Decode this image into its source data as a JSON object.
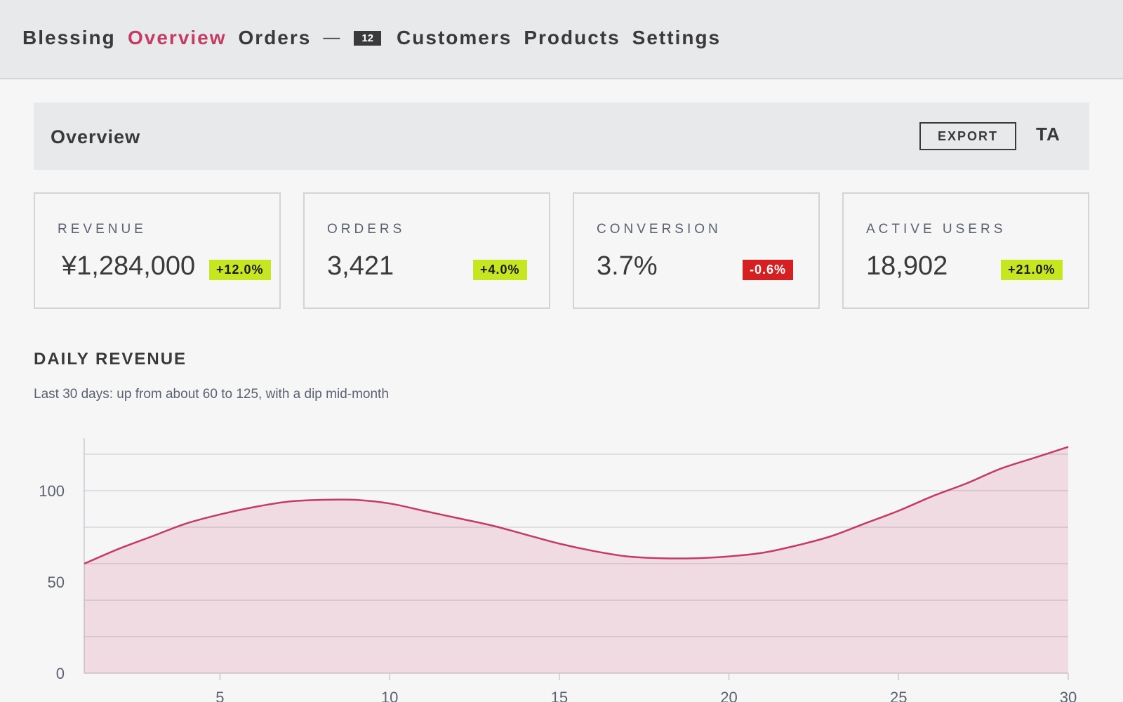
{
  "nav": {
    "brand": "Blessing",
    "items": [
      {
        "label": "Overview",
        "active": true
      },
      {
        "label": "Orders",
        "active": false
      },
      {
        "label": "Customers",
        "active": false
      },
      {
        "label": "Products",
        "active": false
      },
      {
        "label": "Settings",
        "active": false
      }
    ],
    "separator": "—",
    "orders_badge": "12"
  },
  "header": {
    "title": "Overview",
    "export_label": "EXPORT",
    "avatar_initials": "TA"
  },
  "kpis": [
    {
      "label": "REVENUE",
      "value": "¥1,284,000",
      "delta": "+12.0%",
      "trend": "up"
    },
    {
      "label": "ORDERS",
      "value": "3,421",
      "delta": "+4.0%",
      "trend": "up"
    },
    {
      "label": "CONVERSION",
      "value": "3.7%",
      "delta": "-0.6%",
      "trend": "down"
    },
    {
      "label": "ACTIVE USERS",
      "value": "18,902",
      "delta": "+21.0%",
      "trend": "up"
    }
  ],
  "colors": {
    "accent": "#c43c64",
    "positive": "#c5e621",
    "negative": "#d42020",
    "text": "#3a3a3c"
  },
  "section": {
    "title": "DAILY REVENUE",
    "subtitle": "Last 30 days: up from about 60 to 125, with a dip mid-month"
  },
  "chart_data": {
    "type": "area",
    "title": "DAILY REVENUE",
    "x": [
      1,
      2,
      3,
      4,
      5,
      6,
      7,
      8,
      9,
      10,
      11,
      12,
      13,
      14,
      15,
      16,
      17,
      18,
      19,
      20,
      21,
      22,
      23,
      24,
      25,
      26,
      27,
      28,
      29,
      30
    ],
    "values": [
      60,
      68,
      75,
      82,
      87,
      91,
      94,
      95,
      95,
      93,
      89,
      85,
      81,
      76,
      71,
      67,
      64,
      63,
      63,
      64,
      66,
      70,
      75,
      82,
      89,
      97,
      104,
      112,
      118,
      124
    ],
    "xticks": [
      5,
      10,
      15,
      20,
      25,
      30
    ],
    "yticks": [
      0,
      50,
      100
    ],
    "xlim": [
      1,
      30
    ],
    "ylim": [
      0,
      125
    ],
    "grid": true,
    "color": "#c43c64"
  }
}
